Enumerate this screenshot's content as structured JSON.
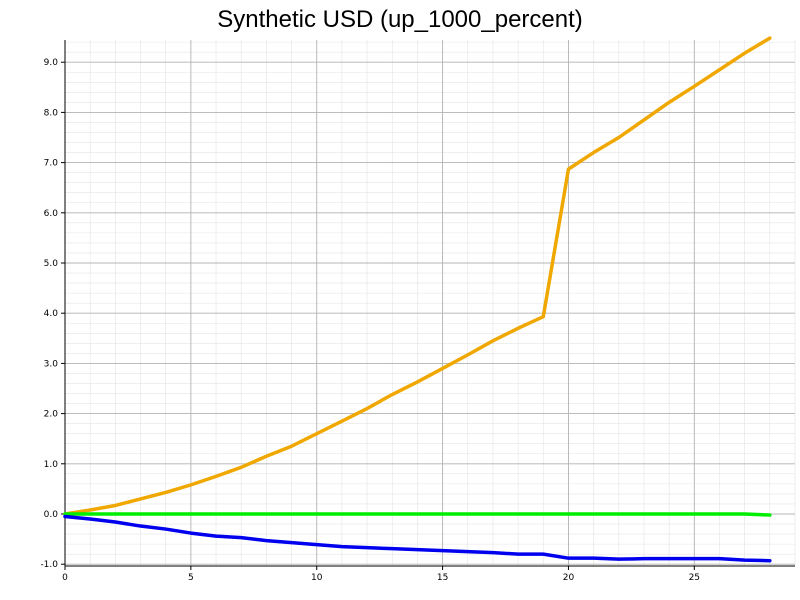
{
  "chart_data": {
    "type": "line",
    "title": "Synthetic USD (up_1000_percent)",
    "xlabel": "",
    "ylabel": "",
    "xlim": [
      0,
      29
    ],
    "ylim": [
      -1.0,
      9.5
    ],
    "x_ticks": [
      0,
      5,
      10,
      15,
      20,
      25
    ],
    "y_ticks": [
      -1.0,
      0.0,
      1.0,
      2.0,
      3.0,
      4.0,
      5.0,
      6.0,
      7.0,
      8.0,
      9.0
    ],
    "y_tick_labels": [
      "-1.0",
      "0.0",
      "1.0",
      "2.0",
      "3.0",
      "4.0",
      "5.0",
      "6.0",
      "7.0",
      "8.0",
      "9.0"
    ],
    "grid": true,
    "legend": "none",
    "series": [
      {
        "color": "#f0a800",
        "x": [
          0,
          1,
          2,
          3,
          4,
          5,
          6,
          7,
          8,
          9,
          10,
          11,
          12,
          13,
          14,
          15,
          16,
          17,
          18,
          19,
          20,
          21,
          22,
          23,
          24,
          25,
          26,
          27,
          28
        ],
        "values": [
          0.0,
          0.08,
          0.17,
          0.3,
          0.43,
          0.58,
          0.75,
          0.93,
          1.15,
          1.35,
          1.6,
          1.85,
          2.1,
          2.38,
          2.63,
          2.9,
          3.17,
          3.45,
          3.7,
          3.93,
          6.87,
          7.2,
          7.5,
          7.85,
          8.2,
          8.52,
          8.85,
          9.18,
          9.48
        ]
      },
      {
        "color": "#00ee00",
        "x": [
          0,
          1,
          2,
          3,
          4,
          5,
          6,
          7,
          8,
          9,
          10,
          11,
          12,
          13,
          14,
          15,
          16,
          17,
          18,
          19,
          20,
          21,
          22,
          23,
          24,
          25,
          26,
          27,
          28
        ],
        "values": [
          0.0,
          0.0,
          0.0,
          0.0,
          0.0,
          0.0,
          0.0,
          0.0,
          0.0,
          0.0,
          0.0,
          0.0,
          0.0,
          0.0,
          0.0,
          0.0,
          0.0,
          0.0,
          0.0,
          0.0,
          0.0,
          0.0,
          0.0,
          0.0,
          0.0,
          0.0,
          0.0,
          0.0,
          -0.02
        ]
      },
      {
        "color": "#0000ee",
        "x": [
          0,
          1,
          2,
          3,
          4,
          5,
          6,
          7,
          8,
          9,
          10,
          11,
          12,
          13,
          14,
          15,
          16,
          17,
          18,
          19,
          20,
          21,
          22,
          23,
          24,
          25,
          26,
          27,
          28
        ],
        "values": [
          -0.05,
          -0.1,
          -0.16,
          -0.24,
          -0.3,
          -0.38,
          -0.44,
          -0.47,
          -0.53,
          -0.57,
          -0.61,
          -0.65,
          -0.67,
          -0.69,
          -0.71,
          -0.73,
          -0.75,
          -0.77,
          -0.8,
          -0.8,
          -0.88,
          -0.88,
          -0.9,
          -0.89,
          -0.89,
          -0.89,
          -0.89,
          -0.92,
          -0.93
        ]
      }
    ]
  }
}
